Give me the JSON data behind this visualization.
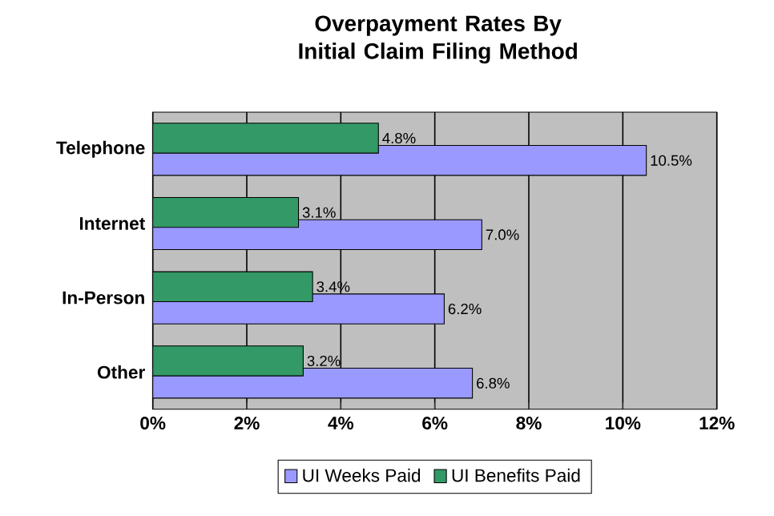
{
  "chart_data": {
    "type": "bar",
    "orientation": "horizontal",
    "title": "Overpayment Rates By Initial Claim Filing Method",
    "categories": [
      "Telephone",
      "Internet",
      "In-Person",
      "Other"
    ],
    "series": [
      {
        "name": "UI Weeks Paid",
        "color": "#9999ff",
        "values": [
          10.5,
          7.0,
          6.2,
          6.8
        ],
        "value_labels": [
          "10.5%",
          "7.0%",
          "6.2%",
          "6.8%"
        ]
      },
      {
        "name": "UI Benefits Paid",
        "color": "#339966",
        "values": [
          4.8,
          3.1,
          3.4,
          3.2
        ],
        "value_labels": [
          "4.8%",
          "3.1%",
          "3.4%",
          "3.2%"
        ]
      }
    ],
    "xlim": [
      0,
      12
    ],
    "xticks": [
      {
        "value": 0,
        "label": "0%"
      },
      {
        "value": 2,
        "label": "2%"
      },
      {
        "value": 4,
        "label": "4%"
      },
      {
        "value": 6,
        "label": "6%"
      },
      {
        "value": 8,
        "label": "8%"
      },
      {
        "value": 10,
        "label": "10%"
      },
      {
        "value": 12,
        "label": "12%"
      }
    ],
    "grid": "x",
    "legend": "bottom"
  }
}
